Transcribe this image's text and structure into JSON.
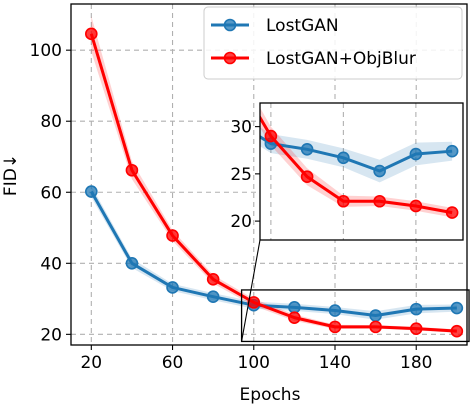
{
  "chart_data": {
    "type": "line",
    "xlabel": "Epochs",
    "ylabel": "FID↓",
    "xlim": [
      10,
      205
    ],
    "ylim": [
      17,
      113
    ],
    "xticks": [
      20,
      60,
      100,
      140,
      180
    ],
    "yticks": [
      20,
      40,
      60,
      80,
      100
    ],
    "grid": true,
    "legend_position": "top-right",
    "x": [
      20,
      40,
      60,
      80,
      100,
      120,
      140,
      160,
      180,
      200
    ],
    "series": [
      {
        "name": "LostGAN",
        "color": "#1f77b4",
        "values": [
          60.2,
          40.0,
          33.2,
          30.6,
          28.2,
          27.6,
          26.7,
          25.3,
          27.1,
          27.4
        ],
        "band": [
          1.6,
          1.3,
          1.0,
          1.0,
          1.0,
          1.0,
          1.0,
          1.2,
          1.2,
          1.0
        ]
      },
      {
        "name": "LostGAN+ObjBlur",
        "color": "#ff0000",
        "values": [
          104.6,
          66.2,
          47.8,
          35.5,
          29.0,
          24.7,
          22.1,
          22.1,
          21.6,
          20.9
        ],
        "band": [
          5.0,
          2.5,
          1.5,
          1.2,
          1.0,
          0.9,
          0.6,
          0.5,
          0.5,
          0.5
        ]
      }
    ],
    "inset": {
      "xlim": [
        94,
        206
      ],
      "ylim": [
        18,
        32.5
      ],
      "yticks": [
        20,
        25,
        30
      ],
      "zoom_region": {
        "x": [
          94,
          206
        ],
        "y": [
          18,
          32.5
        ]
      }
    }
  }
}
